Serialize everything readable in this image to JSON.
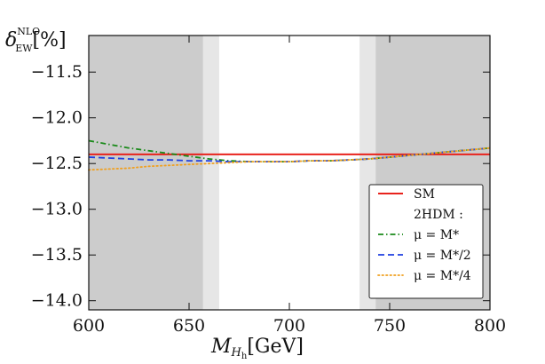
{
  "chart_data": {
    "type": "line",
    "title": "",
    "xlabel": {
      "main": "M",
      "sub": "H",
      "subsub": "h",
      "unit": "[GeV]"
    },
    "ylabel": {
      "main": "δ",
      "sub": "EW",
      "sup": "NLO",
      "unit": "[%]"
    },
    "xlim": [
      600,
      800
    ],
    "ylim": [
      -14.1,
      -11.1
    ],
    "x_ticks": [
      600,
      650,
      700,
      750,
      800
    ],
    "x_tick_labels": [
      "600",
      "650",
      "700",
      "750",
      "800"
    ],
    "y_ticks": [
      -11.5,
      -12.0,
      -12.5,
      -13.0,
      -13.5,
      -14.0
    ],
    "y_tick_labels": [
      "−11.5",
      "−12.0",
      "−12.5",
      "−13.0",
      "−13.5",
      "−14.0"
    ],
    "shaded_regions": [
      {
        "x0": 600,
        "x1": 657,
        "shade": "dark"
      },
      {
        "x0": 657,
        "x1": 665,
        "shade": "light"
      },
      {
        "x0": 735,
        "x1": 743,
        "shade": "light"
      },
      {
        "x0": 743,
        "x1": 800,
        "shade": "dark"
      }
    ],
    "legend_heading": "2HDM :",
    "series": [
      {
        "name": "SM",
        "color": "#e8231d",
        "style": "solid",
        "x": [
          600,
          800
        ],
        "y": [
          -12.4,
          -12.4
        ]
      },
      {
        "name": "μ = M*",
        "color": "#1a8a1a",
        "style": "dashdot",
        "x": [
          600,
          610,
          620,
          630,
          640,
          650,
          660,
          670,
          680,
          690,
          700,
          710,
          720,
          730,
          740,
          750,
          760,
          770,
          780,
          790,
          800
        ],
        "y": [
          -12.25,
          -12.29,
          -12.33,
          -12.36,
          -12.39,
          -12.42,
          -12.45,
          -12.47,
          -12.48,
          -12.48,
          -12.48,
          -12.47,
          -12.47,
          -12.46,
          -12.45,
          -12.43,
          -12.41,
          -12.39,
          -12.37,
          -12.35,
          -12.33
        ]
      },
      {
        "name": "μ = M*/2",
        "color": "#1f3fe0",
        "style": "dashed",
        "x": [
          600,
          610,
          620,
          630,
          640,
          650,
          660,
          670,
          680,
          690,
          700,
          710,
          720,
          730,
          740,
          750,
          760,
          770,
          780,
          790,
          800
        ],
        "y": [
          -12.43,
          -12.44,
          -12.45,
          -12.46,
          -12.46,
          -12.47,
          -12.47,
          -12.48,
          -12.48,
          -12.48,
          -12.48,
          -12.47,
          -12.47,
          -12.46,
          -12.45,
          -12.43,
          -12.41,
          -12.39,
          -12.37,
          -12.35,
          -12.33
        ]
      },
      {
        "name": "μ = M*/4",
        "color": "#f0a020",
        "style": "dotted",
        "x": [
          600,
          610,
          620,
          630,
          640,
          650,
          660,
          670,
          680,
          690,
          700,
          710,
          720,
          730,
          740,
          750,
          760,
          770,
          780,
          790,
          800
        ],
        "y": [
          -12.57,
          -12.56,
          -12.55,
          -12.53,
          -12.52,
          -12.51,
          -12.5,
          -12.49,
          -12.48,
          -12.48,
          -12.48,
          -12.47,
          -12.47,
          -12.46,
          -12.45,
          -12.43,
          -12.41,
          -12.39,
          -12.37,
          -12.35,
          -12.33
        ]
      }
    ],
    "legend": {
      "placement": "bottom-right",
      "entries": [
        "SM",
        "2HDM :",
        "μ = M*",
        "μ = M*/2",
        "μ = M*/4"
      ]
    }
  }
}
